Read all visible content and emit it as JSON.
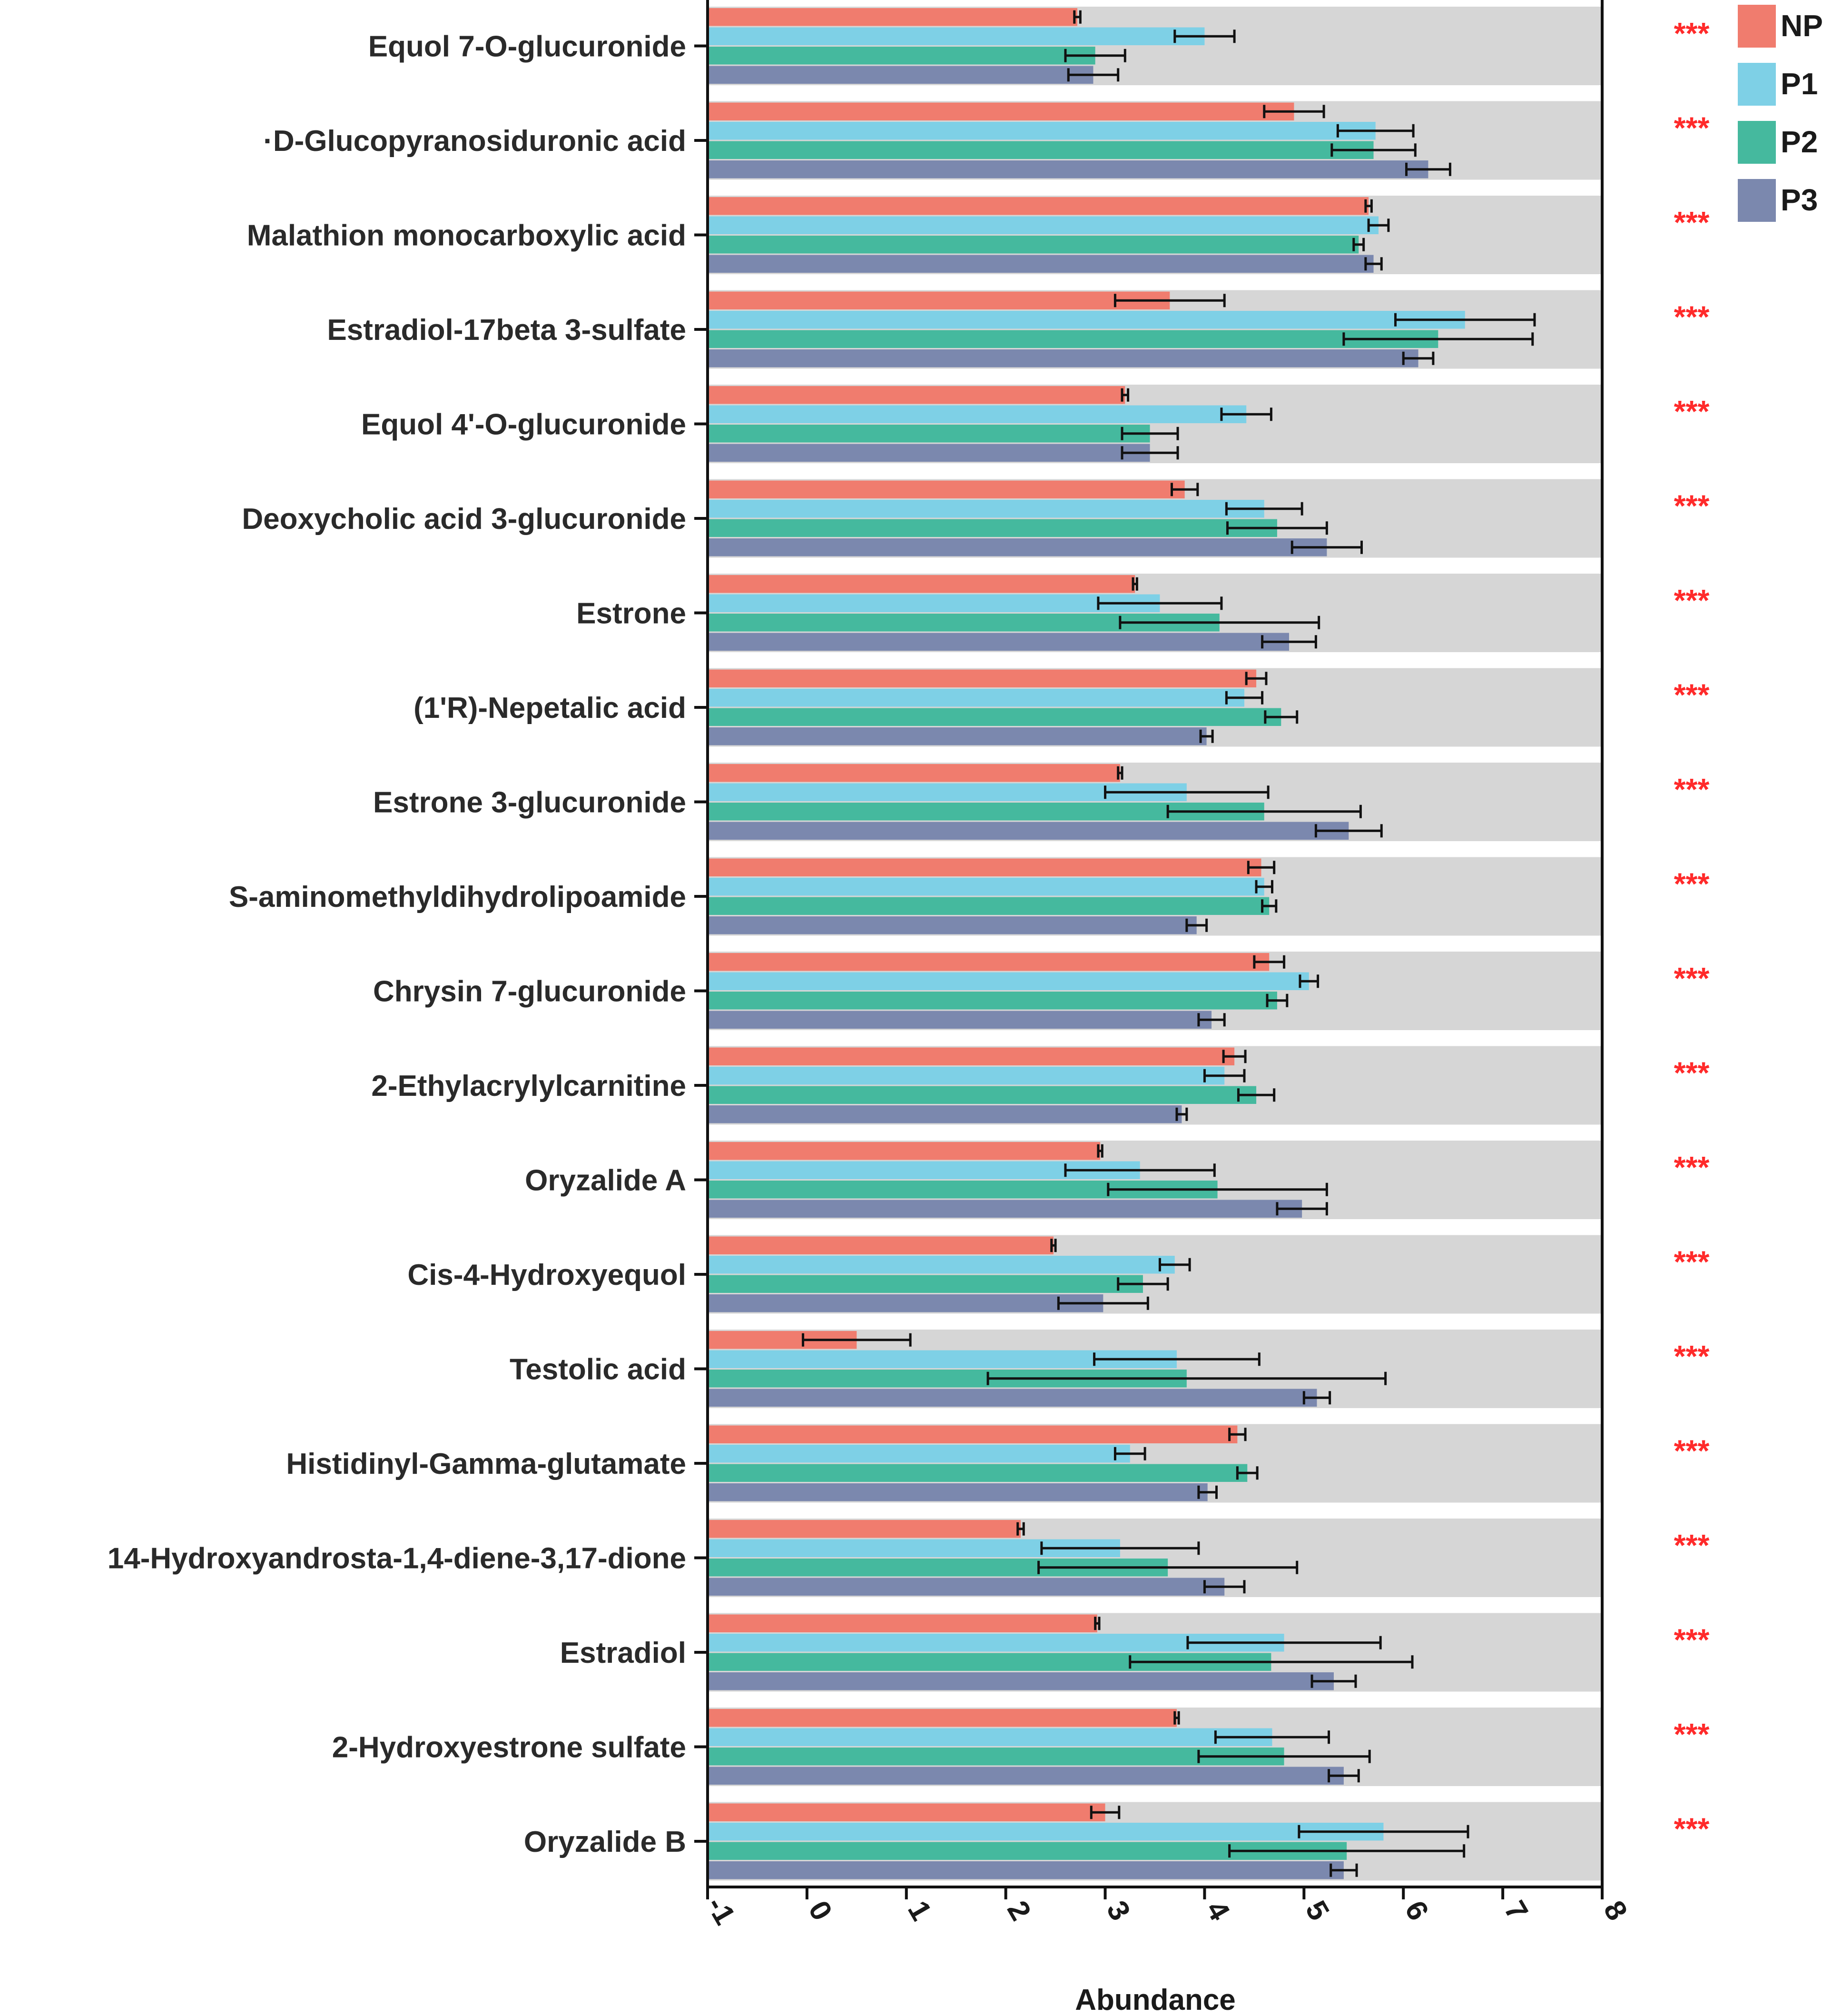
{
  "chart_data": {
    "type": "bar",
    "orientation": "horizontal",
    "xlabel": "Abundance",
    "xlim": [
      -1,
      8
    ],
    "xticks": [
      "-1",
      "0",
      "1",
      "2",
      "3",
      "4",
      "5",
      "6",
      "7",
      "8"
    ],
    "legend_position": "top-right",
    "significance_color": "#ff2a2a",
    "series": [
      {
        "name": "NP",
        "color": "#f07c6e"
      },
      {
        "name": "P1",
        "color": "#7ed0e6"
      },
      {
        "name": "P2",
        "color": "#45b99e"
      },
      {
        "name": "P3",
        "color": "#7b88ae"
      }
    ],
    "categories": [
      {
        "label": "Equol 7-O-glucuronide",
        "sig": "***",
        "values": [
          2.72,
          4.0,
          2.9,
          2.88
        ],
        "errors": [
          0.03,
          0.3,
          0.3,
          0.25
        ]
      },
      {
        "label": "·D-Glucopyranosiduronic acid",
        "sig": "***",
        "values": [
          4.9,
          5.72,
          5.7,
          6.25
        ],
        "errors": [
          0.3,
          0.38,
          0.42,
          0.22
        ]
      },
      {
        "label": "Malathion monocarboxylic acid",
        "sig": "***",
        "values": [
          5.65,
          5.75,
          5.55,
          5.7
        ],
        "errors": [
          0.03,
          0.1,
          0.05,
          0.08
        ]
      },
      {
        "label": "Estradiol-17beta 3-sulfate",
        "sig": "***",
        "values": [
          3.65,
          6.62,
          6.35,
          6.15
        ],
        "errors": [
          0.55,
          0.7,
          0.95,
          0.15
        ]
      },
      {
        "label": "Equol 4'-O-glucuronide",
        "sig": "***",
        "values": [
          3.2,
          4.42,
          3.45,
          3.45
        ],
        "errors": [
          0.03,
          0.25,
          0.28,
          0.28
        ]
      },
      {
        "label": "Deoxycholic acid 3-glucuronide",
        "sig": "***",
        "values": [
          3.8,
          4.6,
          4.73,
          5.23
        ],
        "errors": [
          0.13,
          0.38,
          0.5,
          0.35
        ]
      },
      {
        "label": "Estrone",
        "sig": "***",
        "values": [
          3.3,
          3.55,
          4.15,
          4.85
        ],
        "errors": [
          0.02,
          0.62,
          1.0,
          0.27
        ]
      },
      {
        "label": "(1'R)-Nepetalic acid",
        "sig": "***",
        "values": [
          4.52,
          4.4,
          4.77,
          4.02
        ],
        "errors": [
          0.1,
          0.18,
          0.16,
          0.06
        ]
      },
      {
        "label": "Estrone 3-glucuronide",
        "sig": "***",
        "values": [
          3.15,
          3.82,
          4.6,
          5.45
        ],
        "errors": [
          0.02,
          0.82,
          0.97,
          0.33
        ]
      },
      {
        "label": "S-aminomethyldihydrolipoamide",
        "sig": "***",
        "values": [
          4.57,
          4.6,
          4.65,
          3.92
        ],
        "errors": [
          0.13,
          0.08,
          0.07,
          0.1
        ]
      },
      {
        "label": "Chrysin 7-glucuronide",
        "sig": "***",
        "values": [
          4.65,
          5.05,
          4.73,
          4.07
        ],
        "errors": [
          0.15,
          0.09,
          0.1,
          0.13
        ]
      },
      {
        "label": "2-Ethylacrylylcarnitine",
        "sig": "***",
        "values": [
          4.3,
          4.2,
          4.52,
          3.77
        ],
        "errors": [
          0.11,
          0.2,
          0.18,
          0.05
        ]
      },
      {
        "label": "Oryzalide A",
        "sig": "***",
        "values": [
          2.95,
          3.35,
          4.13,
          4.98
        ],
        "errors": [
          0.02,
          0.75,
          1.1,
          0.25
        ]
      },
      {
        "label": "Cis-4-Hydroxyequol",
        "sig": "***",
        "values": [
          2.48,
          3.7,
          3.38,
          2.98
        ],
        "errors": [
          0.02,
          0.15,
          0.25,
          0.45
        ]
      },
      {
        "label": "Testolic acid",
        "sig": "***",
        "values": [
          0.5,
          3.72,
          3.82,
          5.13
        ],
        "errors": [
          0.54,
          0.83,
          2.0,
          0.13
        ]
      },
      {
        "label": "Histidinyl-Gamma-glutamate",
        "sig": "***",
        "values": [
          4.33,
          3.25,
          4.43,
          4.03
        ],
        "errors": [
          0.08,
          0.15,
          0.1,
          0.09
        ]
      },
      {
        "label": "14-Hydroxyandrosta-1,4-diene-3,17-dione",
        "sig": "***",
        "values": [
          2.15,
          3.15,
          3.63,
          4.2
        ],
        "errors": [
          0.03,
          0.79,
          1.3,
          0.2
        ]
      },
      {
        "label": "Estradiol",
        "sig": "***",
        "values": [
          2.92,
          4.8,
          4.67,
          5.3
        ],
        "errors": [
          0.02,
          0.97,
          1.42,
          0.22
        ]
      },
      {
        "label": "2-Hydroxyestrone sulfate",
        "sig": "***",
        "values": [
          3.72,
          4.68,
          4.8,
          5.4
        ],
        "errors": [
          0.02,
          0.57,
          0.86,
          0.15
        ]
      },
      {
        "label": "Oryzalide B",
        "sig": "***",
        "values": [
          3.0,
          5.8,
          5.43,
          5.4
        ],
        "errors": [
          0.14,
          0.85,
          1.18,
          0.13
        ]
      }
    ]
  }
}
